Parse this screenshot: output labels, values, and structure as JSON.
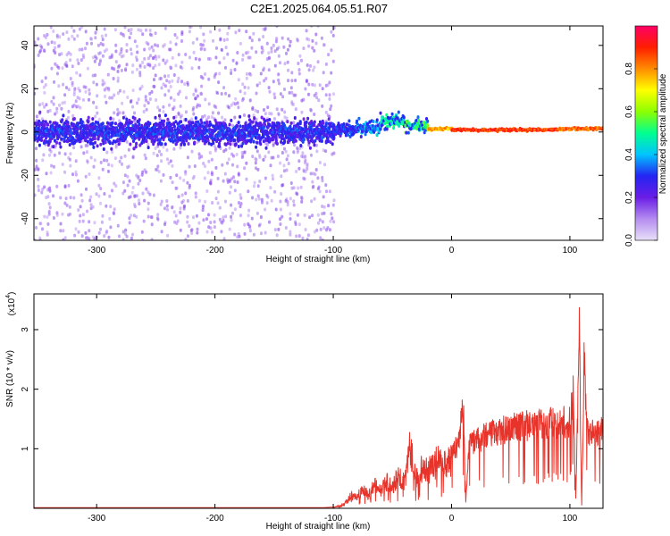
{
  "title": "C2E1.2025.064.05.51.R07",
  "chart_data": [
    {
      "type": "heatmap",
      "xlabel": "Height of straight line (km)",
      "ylabel": "Frequency (Hz)",
      "xlim": [
        -353,
        128
      ],
      "ylim": [
        -50,
        49
      ],
      "xticks": [
        -300,
        -200,
        -100,
        0,
        100
      ],
      "yticks": [
        40,
        20,
        0,
        -20,
        -40
      ],
      "colorbar": {
        "label": "Normalized spectral amplitude",
        "range": [
          0,
          1
        ],
        "ticks": [
          0.0,
          0.2,
          0.4,
          0.6,
          0.8
        ],
        "colormap": [
          "#e8e0f8",
          "#b48cf0",
          "#6a1de6",
          "#2424f2",
          "#00c4ff",
          "#00ff90",
          "#8cff00",
          "#ffff00",
          "#ff8c00",
          "#ff1e00",
          "#ff0066"
        ]
      },
      "features": {
        "noise_region_x": [
          -353,
          -100
        ],
        "carrier_segments": [
          {
            "x": [
              -100,
              -80
            ],
            "freq": 1,
            "amp": 0.35
          },
          {
            "x": [
              -80,
              -60
            ],
            "freq": 2,
            "amp": 0.45
          },
          {
            "x": [
              -60,
              -40
            ],
            "freq": 5,
            "amp": 0.55
          },
          {
            "x": [
              -40,
              -20
            ],
            "freq": 3,
            "amp": 0.6
          },
          {
            "x": [
              -20,
              0
            ],
            "freq": 1.5,
            "amp": 0.85
          },
          {
            "x": [
              0,
              90
            ],
            "freq": 1,
            "amp": 0.95
          },
          {
            "x": [
              90,
              128
            ],
            "freq": 1.5,
            "amp": 0.9
          }
        ]
      }
    },
    {
      "type": "line",
      "xlabel": "Height of straight line (km)",
      "ylabel": "SNR (10 * v/v)",
      "yscale_label": "(x10",
      "yscale_exp": "4",
      "xlim": [
        -353,
        128
      ],
      "ylim": [
        0,
        3.6
      ],
      "xticks": [
        -300,
        -200,
        -100,
        0,
        100
      ],
      "yticks": [
        1,
        2,
        3
      ],
      "color": "#e8332a",
      "series": [
        {
          "x": [
            -353,
            -300,
            -250,
            -200,
            -150,
            -110,
            -100,
            -95,
            -90,
            -85,
            -80,
            -75,
            -70,
            -65,
            -60,
            -55,
            -50,
            -45,
            -40,
            -35,
            -30,
            -25,
            -20,
            -15,
            -10,
            -5,
            0,
            5,
            10,
            12,
            15,
            20,
            30,
            40,
            50,
            60,
            70,
            80,
            90,
            95,
            100,
            103,
            105,
            108,
            110,
            112,
            115,
            118,
            120,
            125,
            128
          ],
          "y": [
            0.01,
            0.01,
            0.01,
            0.01,
            0.01,
            0.01,
            0.02,
            0.05,
            0.12,
            0.3,
            0.25,
            0.45,
            0.3,
            0.55,
            0.4,
            0.6,
            0.5,
            0.75,
            0.6,
            1.4,
            0.7,
            0.95,
            0.85,
            1.0,
            1.1,
            0.95,
            1.15,
            1.25,
            2.1,
            0.1,
            1.3,
            1.35,
            1.45,
            1.55,
            1.6,
            1.65,
            1.68,
            1.7,
            1.7,
            1.72,
            1.72,
            2.4,
            0.2,
            3.5,
            0.05,
            2.85,
            1.6,
            1.5,
            1.55,
            1.45,
            1.6
          ]
        }
      ]
    }
  ]
}
